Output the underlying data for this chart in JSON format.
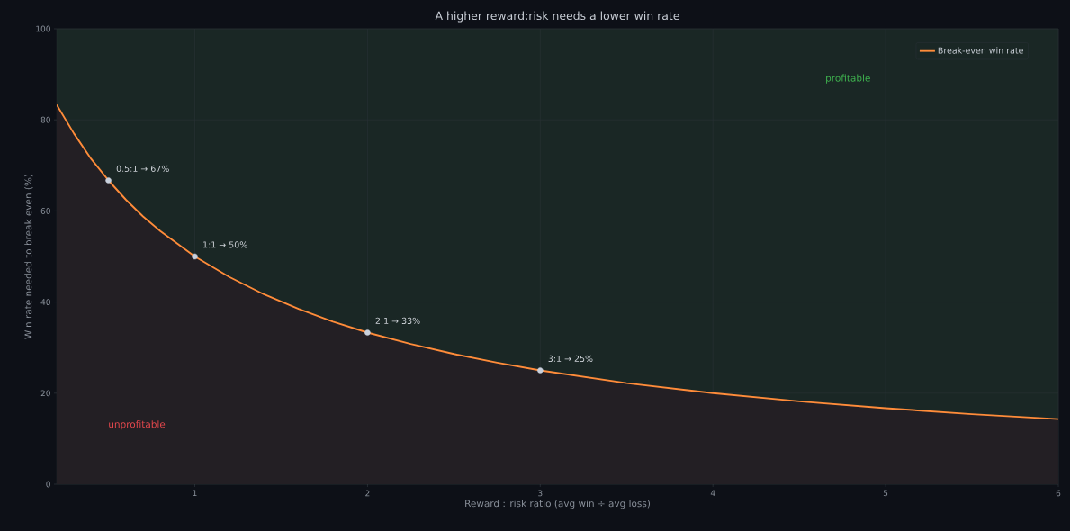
{
  "chart_data": {
    "type": "area",
    "title": "A higher reward:risk needs a lower win rate",
    "xlabel": "Reward : risk ratio  (avg win ÷ avg loss)",
    "ylabel": "Win rate needed to break even (%)",
    "xlim": [
      0.2,
      6
    ],
    "xticks": [
      1,
      2,
      3,
      4,
      5,
      6
    ],
    "ylim": [
      0,
      100
    ],
    "yticks": [
      0,
      20,
      40,
      60,
      80,
      100
    ],
    "grid": true,
    "legend": "top right",
    "series": [
      {
        "name": "Break-even win rate",
        "color": "#ff8c3a",
        "x": [
          0.2,
          0.3,
          0.4,
          0.5,
          0.6,
          0.7,
          0.8,
          1,
          1.2,
          1.4,
          1.6,
          1.8,
          2,
          2.25,
          2.5,
          2.75,
          3,
          3.5,
          4,
          4.5,
          5,
          5.5,
          6
        ],
        "values": [
          83.3,
          77,
          71.4,
          66.7,
          62.5,
          58.8,
          55.6,
          50,
          45.5,
          41.7,
          38.5,
          35.7,
          33.3,
          30.8,
          28.6,
          26.7,
          25,
          22.2,
          20,
          18.2,
          16.7,
          15.4,
          14.3
        ]
      },
      {
        "type": "scatter",
        "color": "#c8d0dc",
        "x": [
          0.5,
          1,
          2,
          3
        ],
        "values": [
          66.7,
          50,
          33.3,
          25
        ]
      }
    ],
    "annotations": [
      {
        "text": "0.5:1 → 67%",
        "x": 0.5,
        "y": 66.7
      },
      {
        "text": "1:1 → 50%",
        "x": 1,
        "y": 50
      },
      {
        "text": "2:1 → 33%",
        "x": 2,
        "y": 33.3
      },
      {
        "text": "3:1 → 25%",
        "x": 3,
        "y": 25
      },
      "profitable",
      "unprofitable"
    ]
  }
}
